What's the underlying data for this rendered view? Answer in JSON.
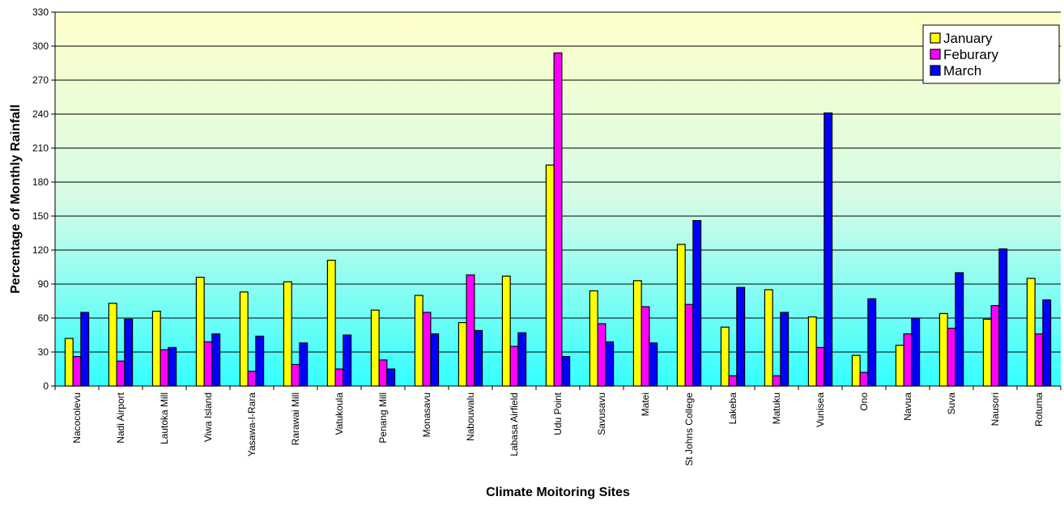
{
  "chart_data": {
    "type": "bar",
    "title": "",
    "xlabel": "Climate Moitoring Sites",
    "ylabel": "Percentage of Monthly Rainfall",
    "ylim": [
      0,
      330
    ],
    "yticks": [
      0,
      30,
      60,
      90,
      120,
      150,
      180,
      210,
      240,
      270,
      300,
      330
    ],
    "grid": true,
    "legend_position": "top-right",
    "background": "gradient-yellow-to-cyan",
    "categories": [
      "Nacocolevu",
      "Nadi Airport",
      "Lautoka Mill",
      "Viwa Island",
      "Yasawa-I-Rara",
      "Rarawai Mill",
      "Vatukoula",
      "Penang Mill",
      "Monasavu",
      "Nabouwalu",
      "Labasa Airfield",
      "Udu Point",
      "Savusavu",
      "Matei",
      "St Johns College",
      "Lakeba",
      "Matuku",
      "Vunisea",
      "Ono",
      "Navua",
      "Suva",
      "Nausori",
      "Rotuma"
    ],
    "series": [
      {
        "name": "January",
        "color": "#ffff00",
        "values": [
          42,
          73,
          66,
          96,
          83,
          92,
          111,
          67,
          80,
          56,
          97,
          195,
          84,
          93,
          125,
          52,
          85,
          61,
          27,
          36,
          64,
          59,
          95
        ]
      },
      {
        "name": "Feburary",
        "color": "#ff00ff",
        "values": [
          26,
          22,
          32,
          39,
          13,
          19,
          15,
          23,
          65,
          98,
          35,
          294,
          55,
          70,
          72,
          9,
          9,
          34,
          12,
          46,
          51,
          71,
          46
        ]
      },
      {
        "name": "March",
        "color": "#0000ff",
        "values": [
          65,
          59,
          34,
          46,
          44,
          38,
          45,
          15,
          46,
          49,
          47,
          26,
          39,
          38,
          146,
          87,
          65,
          241,
          77,
          60,
          100,
          121,
          76
        ]
      }
    ]
  }
}
